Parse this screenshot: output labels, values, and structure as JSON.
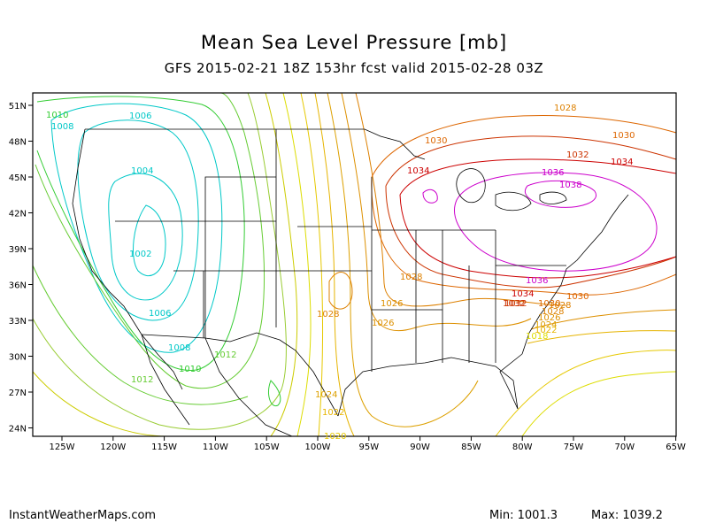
{
  "title": "Mean Sea Level Pressure [mb]",
  "subtitle": "GFS 2015-02-21 18Z 153hr fcst valid 2015-02-28 03Z",
  "footer": {
    "site": "InstantWeatherMaps.com",
    "min_label": "Min: 1001.3",
    "max_label": "Max: 1039.2"
  },
  "axes": {
    "lon_ticks": [
      "125W",
      "120W",
      "115W",
      "110W",
      "105W",
      "100W",
      "95W",
      "90W",
      "85W",
      "80W",
      "75W",
      "70W",
      "65W"
    ],
    "lat_ticks": [
      "51N",
      "48N",
      "45N",
      "42N",
      "39N",
      "36N",
      "33N",
      "30N",
      "27N",
      "24N"
    ]
  },
  "colors": {
    "c1002": "#00c8c8",
    "c1004": "#00c8c8",
    "c1006": "#00c8c8",
    "c1008": "#00c8c8",
    "c1010": "#33cc33",
    "c1012": "#66cc33",
    "c1014": "#99cc33",
    "c1016": "#cccc00",
    "c1018": "#dddd00",
    "c1020": "#e6c800",
    "c1022": "#e6b400",
    "c1024": "#dda000",
    "c1026": "#dd9000",
    "c1028": "#dd8000",
    "c1030": "#dd6600",
    "c1032": "#cc3300",
    "c1034": "#cc0000",
    "c1036": "#cc00cc",
    "c1038": "#cc00cc"
  },
  "contour_labels": [
    {
      "text": "1010",
      "color": "c1010"
    },
    {
      "text": "1008",
      "color": "c1008"
    },
    {
      "text": "1006",
      "color": "c1006"
    },
    {
      "text": "1004",
      "color": "c1004"
    },
    {
      "text": "1002",
      "color": "c1002"
    },
    {
      "text": "1006",
      "color": "c1006"
    },
    {
      "text": "1008",
      "color": "c1008"
    },
    {
      "text": "1010",
      "color": "c1010"
    },
    {
      "text": "1012",
      "color": "c1012"
    },
    {
      "text": "1012",
      "color": "c1012"
    },
    {
      "text": "1024",
      "color": "c1024"
    },
    {
      "text": "1022",
      "color": "c1022"
    },
    {
      "text": "1020",
      "color": "c1020"
    },
    {
      "text": "1028",
      "color": "c1028"
    },
    {
      "text": "1028",
      "color": "c1028"
    },
    {
      "text": "1026",
      "color": "c1026"
    },
    {
      "text": "1030",
      "color": "c1030"
    },
    {
      "text": "1030",
      "color": "c1030"
    },
    {
      "text": "1032",
      "color": "c1032"
    },
    {
      "text": "1034",
      "color": "c1034"
    },
    {
      "text": "1036",
      "color": "c1036"
    },
    {
      "text": "1038",
      "color": "c1038"
    },
    {
      "text": "1036",
      "color": "c1036"
    },
    {
      "text": "1034",
      "color": "c1034"
    },
    {
      "text": "1032",
      "color": "c1032"
    },
    {
      "text": "1030",
      "color": "c1030"
    },
    {
      "text": "1028",
      "color": "c1028"
    },
    {
      "text": "1026",
      "color": "c1026"
    },
    {
      "text": "1024",
      "color": "c1024"
    },
    {
      "text": "1022",
      "color": "c1022"
    },
    {
      "text": "1018",
      "color": "c1018"
    },
    {
      "text": "1028",
      "color": "c1028"
    },
    {
      "text": "1030",
      "color": "c1030"
    },
    {
      "text": "1032",
      "color": "c1032"
    },
    {
      "text": "1034",
      "color": "c1034"
    },
    {
      "text": "1026",
      "color": "c1026"
    },
    {
      "text": "1028",
      "color": "c1028"
    }
  ]
}
